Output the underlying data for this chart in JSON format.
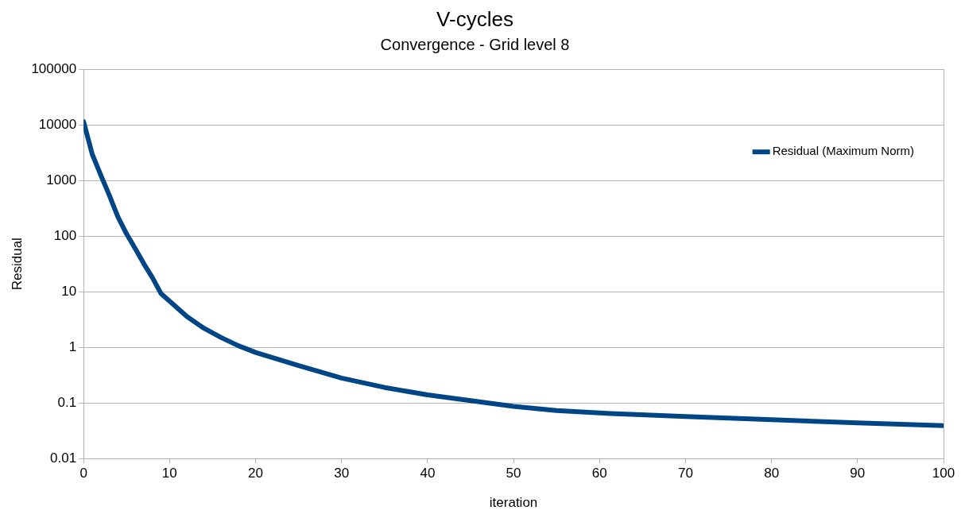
{
  "chart_data": {
    "type": "line",
    "title": "V-cycles",
    "subtitle": "Convergence - Grid level 8",
    "xlabel": "iteration",
    "ylabel": "Residual",
    "series": [
      {
        "name": "Residual (Maximum Norm)",
        "color": "#004586",
        "x": [
          0,
          1,
          2,
          3,
          4,
          5,
          6,
          7,
          8,
          9,
          10,
          12,
          14,
          16,
          18,
          20,
          25,
          30,
          35,
          40,
          45,
          50,
          55,
          60,
          70,
          80,
          90,
          100
        ],
        "values": [
          11500,
          3000,
          1250,
          540,
          220,
          110,
          60,
          32,
          18,
          9.3,
          6.8,
          3.6,
          2.2,
          1.5,
          1.07,
          0.81,
          0.47,
          0.28,
          0.19,
          0.14,
          0.11,
          0.087,
          0.073,
          0.066,
          0.057,
          0.05,
          0.044,
          0.039
        ]
      }
    ],
    "xlim": [
      0,
      100
    ],
    "xticks": [
      0,
      10,
      20,
      30,
      40,
      50,
      60,
      70,
      80,
      90,
      100
    ],
    "ylim": [
      0.01,
      100000
    ],
    "yticks": [
      0.01,
      0.1,
      1,
      10,
      100,
      1000,
      10000,
      100000
    ],
    "log": "y",
    "grid": "y",
    "legend": "top right",
    "marker": "none",
    "line_style": "solid"
  }
}
